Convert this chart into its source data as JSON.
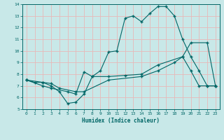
{
  "xlabel": "Humidex (Indice chaleur)",
  "ylabel": "",
  "bg_color": "#c8e8e8",
  "grid_color": "#e8b8b8",
  "line_color": "#006666",
  "xlim": [
    -0.5,
    23.5
  ],
  "ylim": [
    5,
    14
  ],
  "xticks": [
    0,
    1,
    2,
    3,
    4,
    5,
    6,
    7,
    8,
    9,
    10,
    11,
    12,
    13,
    14,
    15,
    16,
    17,
    18,
    19,
    20,
    21,
    22,
    23
  ],
  "yticks": [
    5,
    6,
    7,
    8,
    9,
    10,
    11,
    12,
    13,
    14
  ],
  "line1_x": [
    0,
    1,
    2,
    3,
    4,
    5,
    6,
    7,
    8,
    9,
    10,
    11,
    12,
    13,
    14,
    15,
    16,
    17,
    18,
    19,
    20,
    21,
    22,
    23
  ],
  "line1_y": [
    7.5,
    7.3,
    7.3,
    7.0,
    6.5,
    5.5,
    5.6,
    6.3,
    7.8,
    8.3,
    9.9,
    10.0,
    12.8,
    13.0,
    12.5,
    13.2,
    13.8,
    13.8,
    13.0,
    11.0,
    9.5,
    8.3,
    7.0,
    7.0
  ],
  "line2_x": [
    0,
    2,
    3,
    5,
    6,
    7,
    8,
    10,
    12,
    14,
    16,
    19,
    20,
    21,
    22,
    23
  ],
  "line2_y": [
    7.5,
    7.0,
    6.8,
    6.5,
    6.3,
    8.2,
    7.8,
    7.8,
    7.9,
    8.0,
    8.8,
    9.5,
    8.3,
    7.0,
    7.0,
    7.0
  ],
  "line3_x": [
    0,
    2,
    3,
    4,
    6,
    7,
    10,
    14,
    16,
    18,
    19,
    20,
    22,
    23
  ],
  "line3_y": [
    7.5,
    7.3,
    7.2,
    6.8,
    6.5,
    6.5,
    7.5,
    7.8,
    8.3,
    9.0,
    9.5,
    10.7,
    10.7,
    7.0
  ]
}
